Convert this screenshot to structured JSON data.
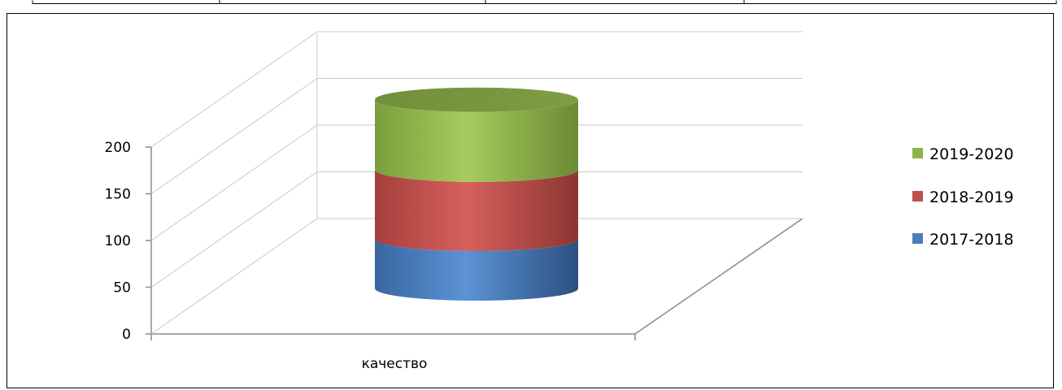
{
  "chart_data": {
    "type": "bar",
    "stacked": true,
    "style": "3d-cylinder",
    "categories": [
      "качество"
    ],
    "series": [
      {
        "name": "2017-2018",
        "values": [
          53
        ],
        "color": "#4a7ebb"
      },
      {
        "name": "2018-2019",
        "values": [
          74
        ],
        "color": "#c0504d"
      },
      {
        "name": "2019-2020",
        "values": [
          75
        ],
        "color": "#8db34a"
      }
    ],
    "yticks": [
      "0",
      "50",
      "100",
      "150",
      "200"
    ],
    "ylim": [
      0,
      200
    ],
    "grid": true,
    "legend_position": "right"
  }
}
